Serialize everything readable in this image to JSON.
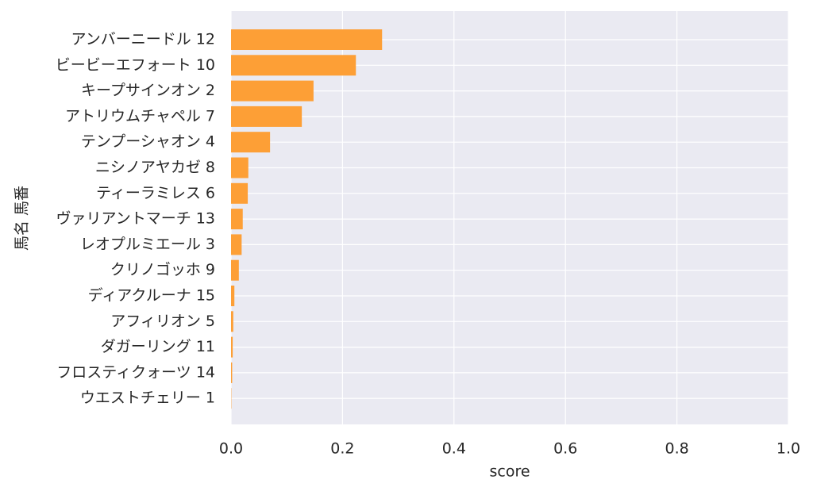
{
  "chart_data": {
    "type": "bar",
    "orientation": "horizontal",
    "categories": [
      "アンバーニードル 12",
      "ビービーエフォート 10",
      "キープサインオン 2",
      "アトリウムチャペル 7",
      "テンプーシャオン 4",
      "ニシノアヤカゼ 8",
      "ティーラミレス 6",
      "ヴァリアントマーチ 13",
      "レオプルミエール 3",
      "クリノゴッホ 9",
      "ディアクルーナ 15",
      "アフィリオン 5",
      "ダガーリング 11",
      "フロスティクォーツ 14",
      "ウエストチェリー 1"
    ],
    "values": [
      0.271,
      0.224,
      0.148,
      0.127,
      0.07,
      0.031,
      0.03,
      0.021,
      0.019,
      0.014,
      0.006,
      0.004,
      0.003,
      0.002,
      0.0005
    ],
    "color": "#fd9f36",
    "xlim": [
      0,
      1
    ],
    "xticks": [
      {
        "value": 0,
        "label": "0.0"
      },
      {
        "value": 0.2,
        "label": "0.2"
      },
      {
        "value": 0.4,
        "label": "0.4"
      },
      {
        "value": 0.6,
        "label": "0.6"
      },
      {
        "value": 0.8,
        "label": "0.8"
      },
      {
        "value": 1,
        "label": "1.0"
      }
    ],
    "xlabel": "score",
    "ylabel": "馬名 馬番",
    "grid": true
  }
}
